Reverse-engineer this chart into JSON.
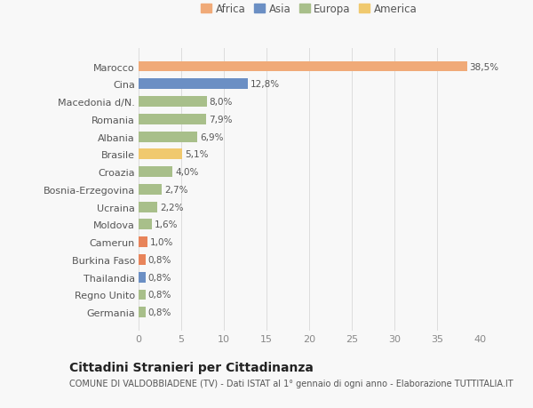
{
  "categories": [
    "Germania",
    "Regno Unito",
    "Thailandia",
    "Burkina Faso",
    "Camerun",
    "Moldova",
    "Ucraina",
    "Bosnia-Erzegovina",
    "Croazia",
    "Brasile",
    "Albania",
    "Romania",
    "Macedonia d/N.",
    "Cina",
    "Marocco"
  ],
  "values": [
    0.8,
    0.8,
    0.8,
    0.8,
    1.0,
    1.6,
    2.2,
    2.7,
    4.0,
    5.1,
    6.9,
    7.9,
    8.0,
    12.8,
    38.5
  ],
  "colors": [
    "#afc eighteen",
    "#a8bf8a",
    "#6b8fc4",
    "#e8845a",
    "#e8845a",
    "#a8bf8a",
    "#a8bf8a",
    "#a8bf8a",
    "#a8bf8a",
    "#f0c96e",
    "#a8bf8a",
    "#a8bf8a",
    "#a8bf8a",
    "#6b8fc4",
    "#f0aa78"
  ],
  "bar_colors": [
    "#a8bf8a",
    "#a8bf8a",
    "#6b8fc4",
    "#e8845a",
    "#e8845a",
    "#a8bf8a",
    "#a8bf8a",
    "#a8bf8a",
    "#a8bf8a",
    "#f0c96e",
    "#a8bf8a",
    "#a8bf8a",
    "#a8bf8a",
    "#6b8fc4",
    "#f0aa78"
  ],
  "labels": [
    "0,8%",
    "0,8%",
    "0,8%",
    "0,8%",
    "1,0%",
    "1,6%",
    "2,2%",
    "2,7%",
    "4,0%",
    "5,1%",
    "6,9%",
    "7,9%",
    "8,0%",
    "12,8%",
    "38,5%"
  ],
  "legend_labels": [
    "Africa",
    "Asia",
    "Europa",
    "America"
  ],
  "legend_colors": [
    "#f0aa78",
    "#6b8fc4",
    "#a8bf8a",
    "#f0c96e"
  ],
  "title": "Cittadini Stranieri per Cittadinanza",
  "subtitle": "COMUNE DI VALDOBBIADENE (TV) - Dati ISTAT al 1° gennaio di ogni anno - Elaborazione TUTTITALIA.IT",
  "xlim": [
    0,
    40
  ],
  "xticks": [
    0,
    5,
    10,
    15,
    20,
    25,
    30,
    35,
    40
  ],
  "background_color": "#f8f8f8",
  "bar_height": 0.6,
  "title_fontsize": 10,
  "subtitle_fontsize": 7,
  "label_fontsize": 7.5,
  "tick_fontsize": 8,
  "legend_fontsize": 8.5
}
